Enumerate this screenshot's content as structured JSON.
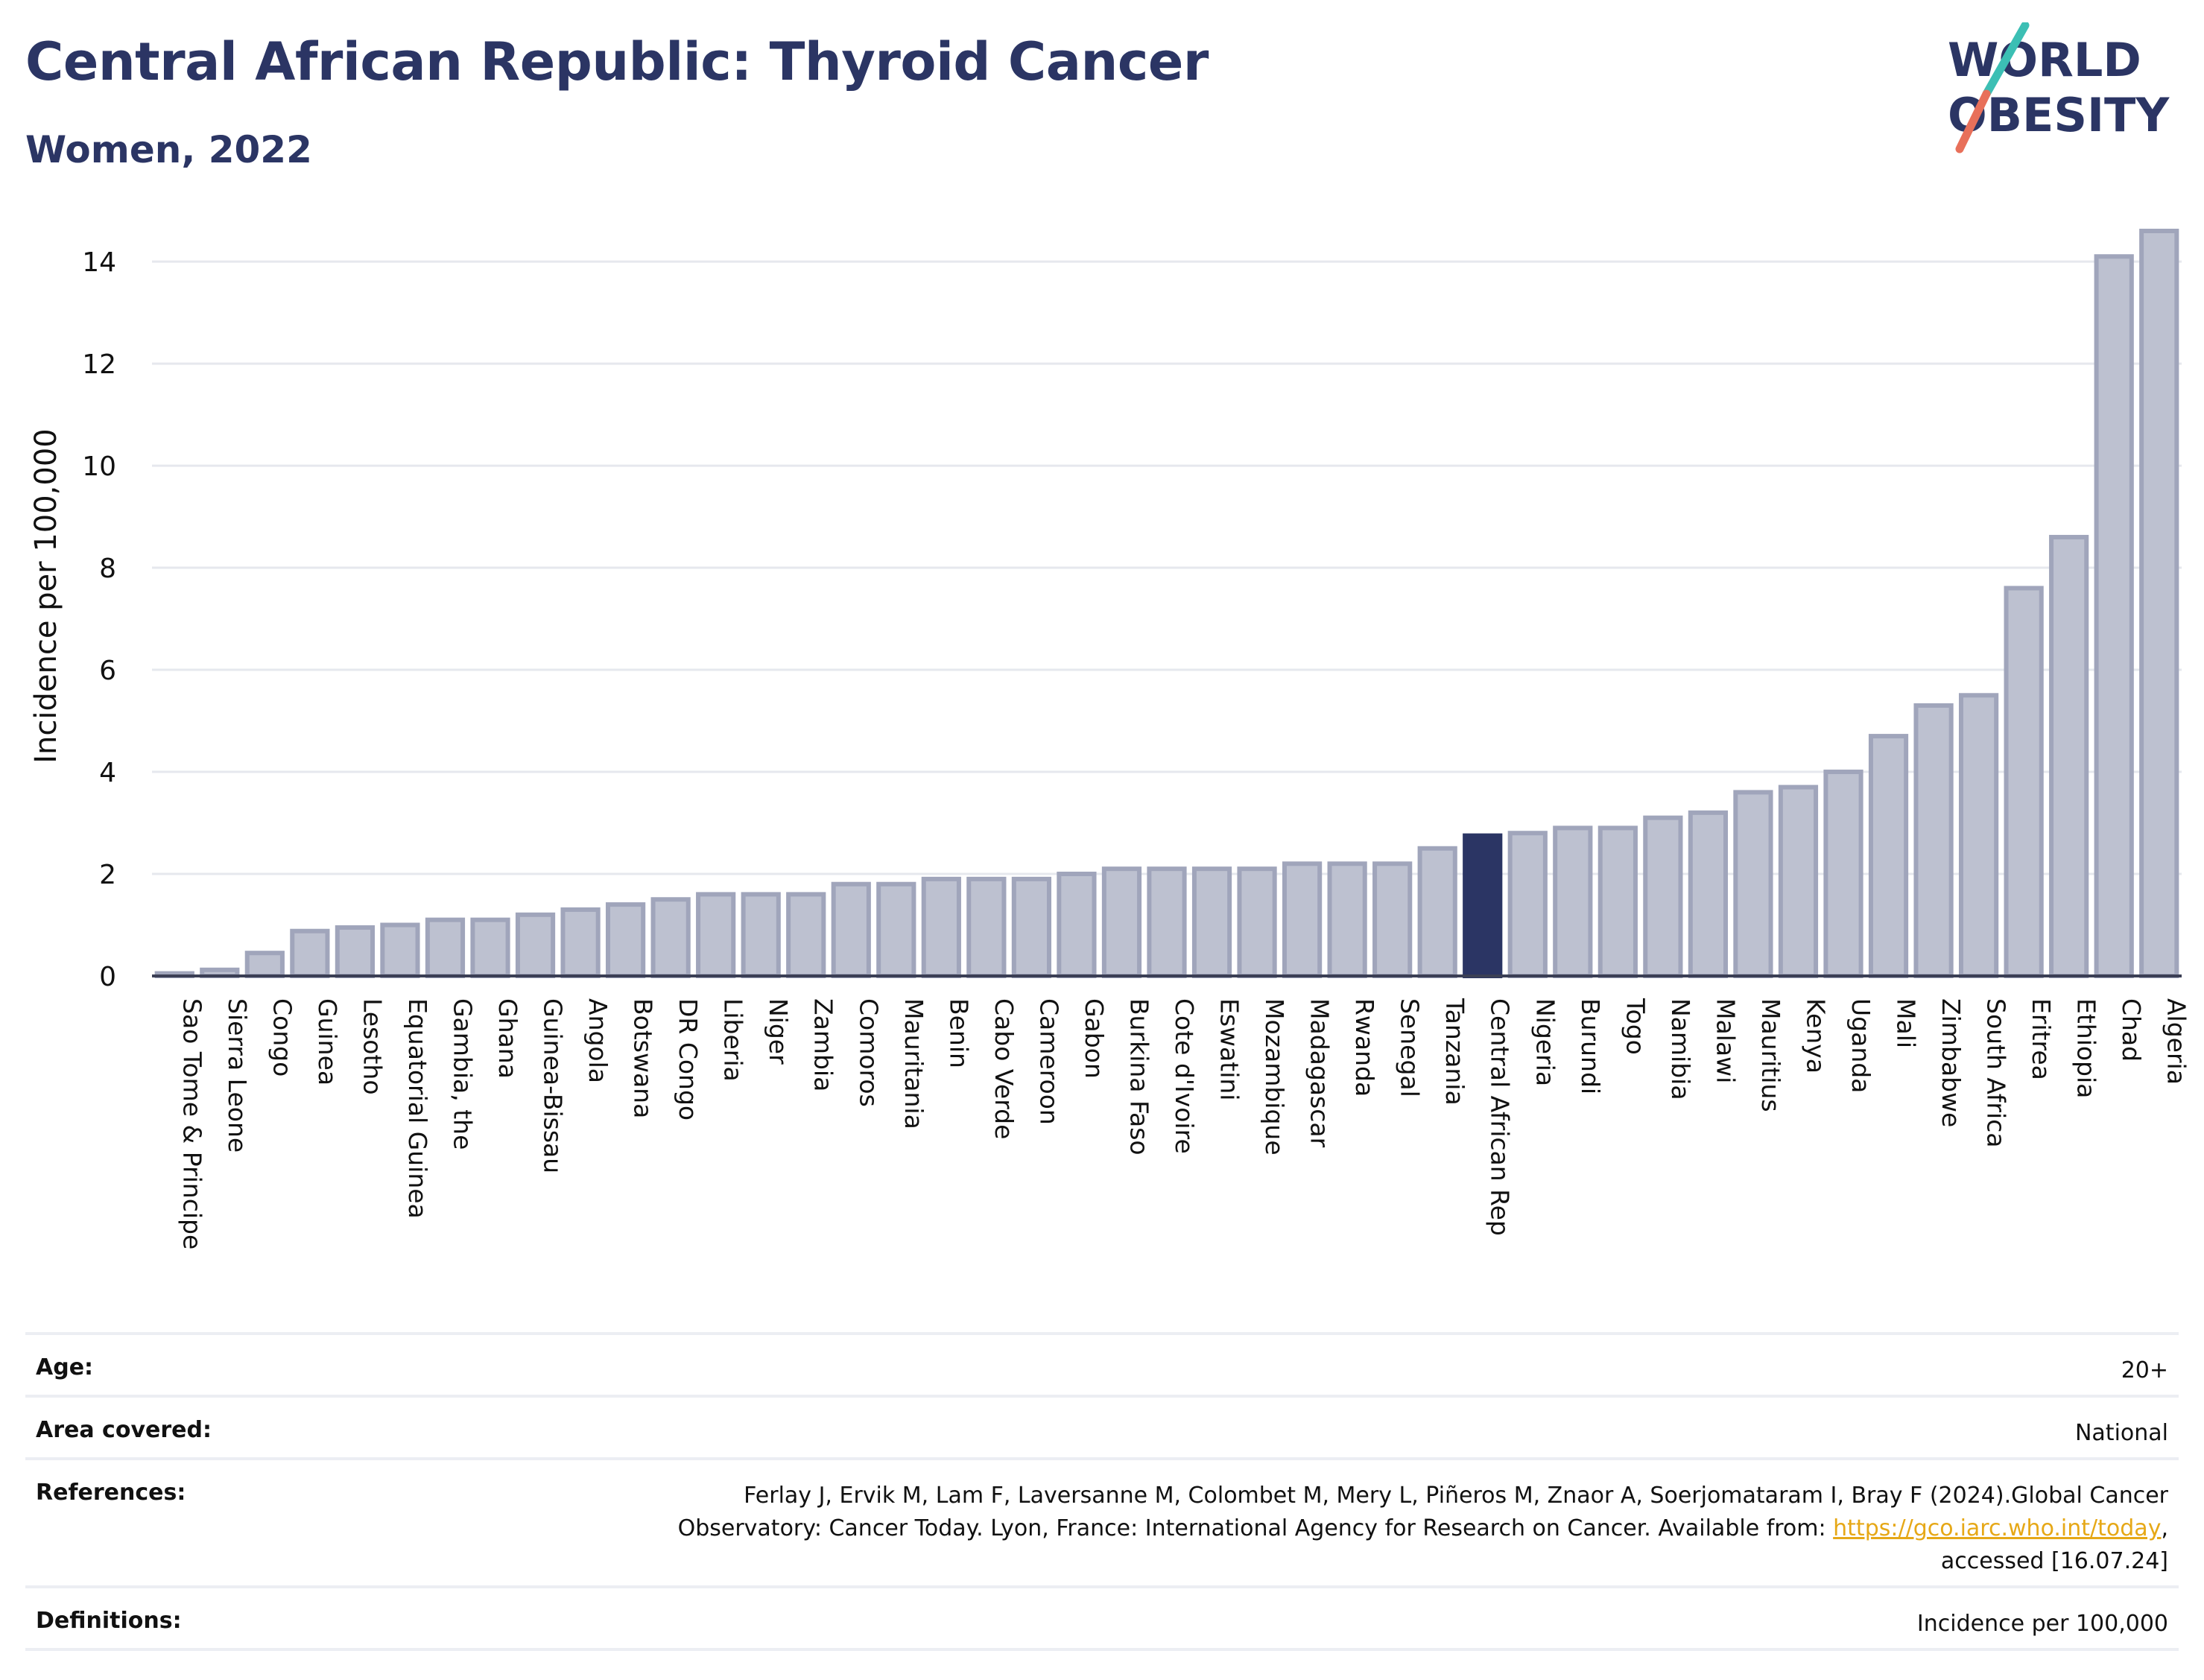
{
  "header": {
    "title": "Central African Republic: Thyroid Cancer",
    "subtitle": "Women, 2022"
  },
  "logo": {
    "line1": "WORLD",
    "line2": "OBESITY",
    "icon": "slash-logo-icon"
  },
  "colors": {
    "accent": "#2b3564",
    "bar": "#bdc1d0",
    "bar_edge": "#a0a5bb",
    "highlight": "#2b3564",
    "logo_teal": "#3cbfb4",
    "logo_red": "#e8705a",
    "link": "#e6a817"
  },
  "chart_data": {
    "type": "bar",
    "ylabel": "Incidence per 100,000",
    "xlabel": "",
    "ylim": [
      0,
      14.6
    ],
    "yticks": [
      0,
      2,
      4,
      6,
      8,
      10,
      12,
      14
    ],
    "grid": true,
    "highlight": "Central African Rep",
    "categories": [
      "Sao Tome & Principe",
      "Sierra Leone",
      "Congo",
      "Guinea",
      "Lesotho",
      "Equatorial Guinea",
      "Gambia, the",
      "Ghana",
      "Guinea-Bissau",
      "Angola",
      "Botswana",
      "DR Congo",
      "Liberia",
      "Niger",
      "Zambia",
      "Comoros",
      "Mauritania",
      "Benin",
      "Cabo Verde",
      "Cameroon",
      "Gabon",
      "Burkina Faso",
      "Cote d'Ivoire",
      "Eswatini",
      "Mozambique",
      "Madagascar",
      "Rwanda",
      "Senegal",
      "Tanzania",
      "Central African Rep",
      "Nigeria",
      "Burundi",
      "Togo",
      "Namibia",
      "Malawi",
      "Mauritius",
      "Kenya",
      "Uganda",
      "Mali",
      "Zimbabwe",
      "South Africa",
      "Eritrea",
      "Ethiopia",
      "Chad",
      "Algeria"
    ],
    "values": [
      0.05,
      0.12,
      0.45,
      0.88,
      0.95,
      1.0,
      1.1,
      1.1,
      1.2,
      1.3,
      1.4,
      1.5,
      1.6,
      1.6,
      1.6,
      1.8,
      1.8,
      1.9,
      1.9,
      1.9,
      2.0,
      2.1,
      2.1,
      2.1,
      2.1,
      2.2,
      2.2,
      2.2,
      2.5,
      2.75,
      2.8,
      2.9,
      2.9,
      3.1,
      3.2,
      3.6,
      3.7,
      4.0,
      4.7,
      5.3,
      5.5,
      7.6,
      8.6,
      14.1,
      14.6
    ]
  },
  "info": [
    {
      "label": "Age:",
      "value": "20+"
    },
    {
      "label": "Area covered:",
      "value": "National"
    },
    {
      "label": "References:",
      "value_line1": "Ferlay J, Ervik M, Lam F, Laversanne M, Colombet M, Mery L, Piñeros M, Znaor A, Soerjomataram I, Bray F (2024).Global Cancer",
      "value_line2_pre": "Observatory: Cancer Today. Lyon, France: International Agency for Research on Cancer. Available from: ",
      "value_link": "https://gco.iarc.who.int/today",
      "value_line2_post": ",",
      "value_line3": "accessed [16.07.24]"
    },
    {
      "label": "Definitions:",
      "value": "Incidence per 100,000"
    }
  ]
}
